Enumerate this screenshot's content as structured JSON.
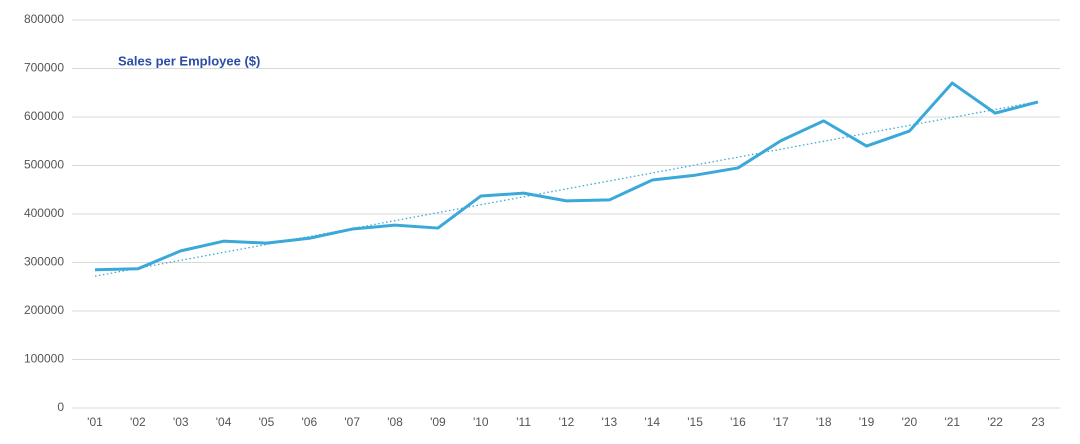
{
  "chart_data": {
    "type": "line",
    "title": "Sales per Employee ($)",
    "categories": [
      "'01",
      "'02",
      "'03",
      "'04",
      "'05",
      "'06",
      "'07",
      "'08",
      "'09",
      "'10",
      "'11",
      "'12",
      "'13",
      "'14",
      "'15",
      "'16",
      "'17",
      "'18",
      "'19",
      "'20",
      "'21",
      "'22",
      "23"
    ],
    "series": [
      {
        "name": "Sales per Employee ($)",
        "color": "#3aa9d9",
        "values": [
          285000,
          287000,
          324000,
          344000,
          340000,
          350000,
          369000,
          377000,
          371000,
          437000,
          443000,
          427000,
          429000,
          470000,
          480000,
          495000,
          551000,
          592000,
          540000,
          571000,
          670000,
          608000,
          631000
        ]
      }
    ],
    "ylim": [
      0,
      800000
    ],
    "yticks": [
      0,
      100000,
      200000,
      300000,
      400000,
      500000,
      600000,
      700000,
      800000
    ],
    "grid": true,
    "trendline": true
  }
}
